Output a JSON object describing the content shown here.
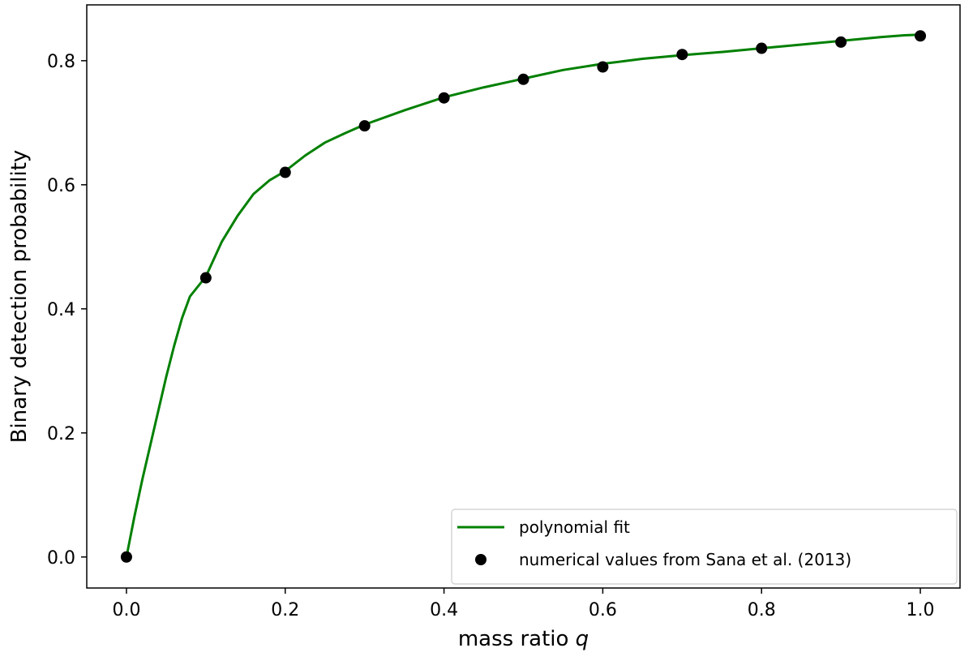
{
  "chart_data": {
    "type": "scatter",
    "title": "",
    "xlabel": "mass ratio",
    "xlabel_var": "q",
    "ylabel": "Binary detection probability",
    "xlim": [
      -0.05,
      1.05
    ],
    "ylim": [
      -0.05,
      0.89
    ],
    "xticks": [
      0.0,
      0.2,
      0.4,
      0.6,
      0.8,
      1.0
    ],
    "xtick_labels": [
      "0.0",
      "0.2",
      "0.4",
      "0.6",
      "0.8",
      "1.0"
    ],
    "yticks": [
      0.0,
      0.2,
      0.4,
      0.6,
      0.8
    ],
    "ytick_labels": [
      "0.0",
      "0.2",
      "0.4",
      "0.6",
      "0.8"
    ],
    "grid": false,
    "legend_position": "bottom-right",
    "series": [
      {
        "name": "polynomial fit",
        "kind": "line",
        "color": "#008000",
        "x": [
          0.0,
          0.01,
          0.02,
          0.03,
          0.04,
          0.05,
          0.06,
          0.07,
          0.08,
          0.1,
          0.12,
          0.14,
          0.16,
          0.18,
          0.2,
          0.225,
          0.25,
          0.275,
          0.3,
          0.35,
          0.4,
          0.45,
          0.5,
          0.55,
          0.6,
          0.65,
          0.7,
          0.75,
          0.8,
          0.85,
          0.9,
          0.95,
          0.98,
          1.0
        ],
        "y": [
          0.0,
          0.065,
          0.125,
          0.18,
          0.235,
          0.29,
          0.34,
          0.385,
          0.42,
          0.452,
          0.508,
          0.55,
          0.585,
          0.607,
          0.622,
          0.647,
          0.668,
          0.683,
          0.697,
          0.72,
          0.741,
          0.757,
          0.771,
          0.785,
          0.795,
          0.803,
          0.809,
          0.814,
          0.82,
          0.826,
          0.832,
          0.838,
          0.841,
          0.842
        ]
      },
      {
        "name": "numerical values from Sana et al. (2013)",
        "kind": "scatter",
        "color": "#000000",
        "x": [
          0.0,
          0.1,
          0.2,
          0.3,
          0.4,
          0.5,
          0.6,
          0.7,
          0.8,
          0.9,
          1.0
        ],
        "y": [
          0.0,
          0.45,
          0.62,
          0.695,
          0.74,
          0.77,
          0.79,
          0.81,
          0.82,
          0.83,
          0.84
        ]
      }
    ]
  }
}
